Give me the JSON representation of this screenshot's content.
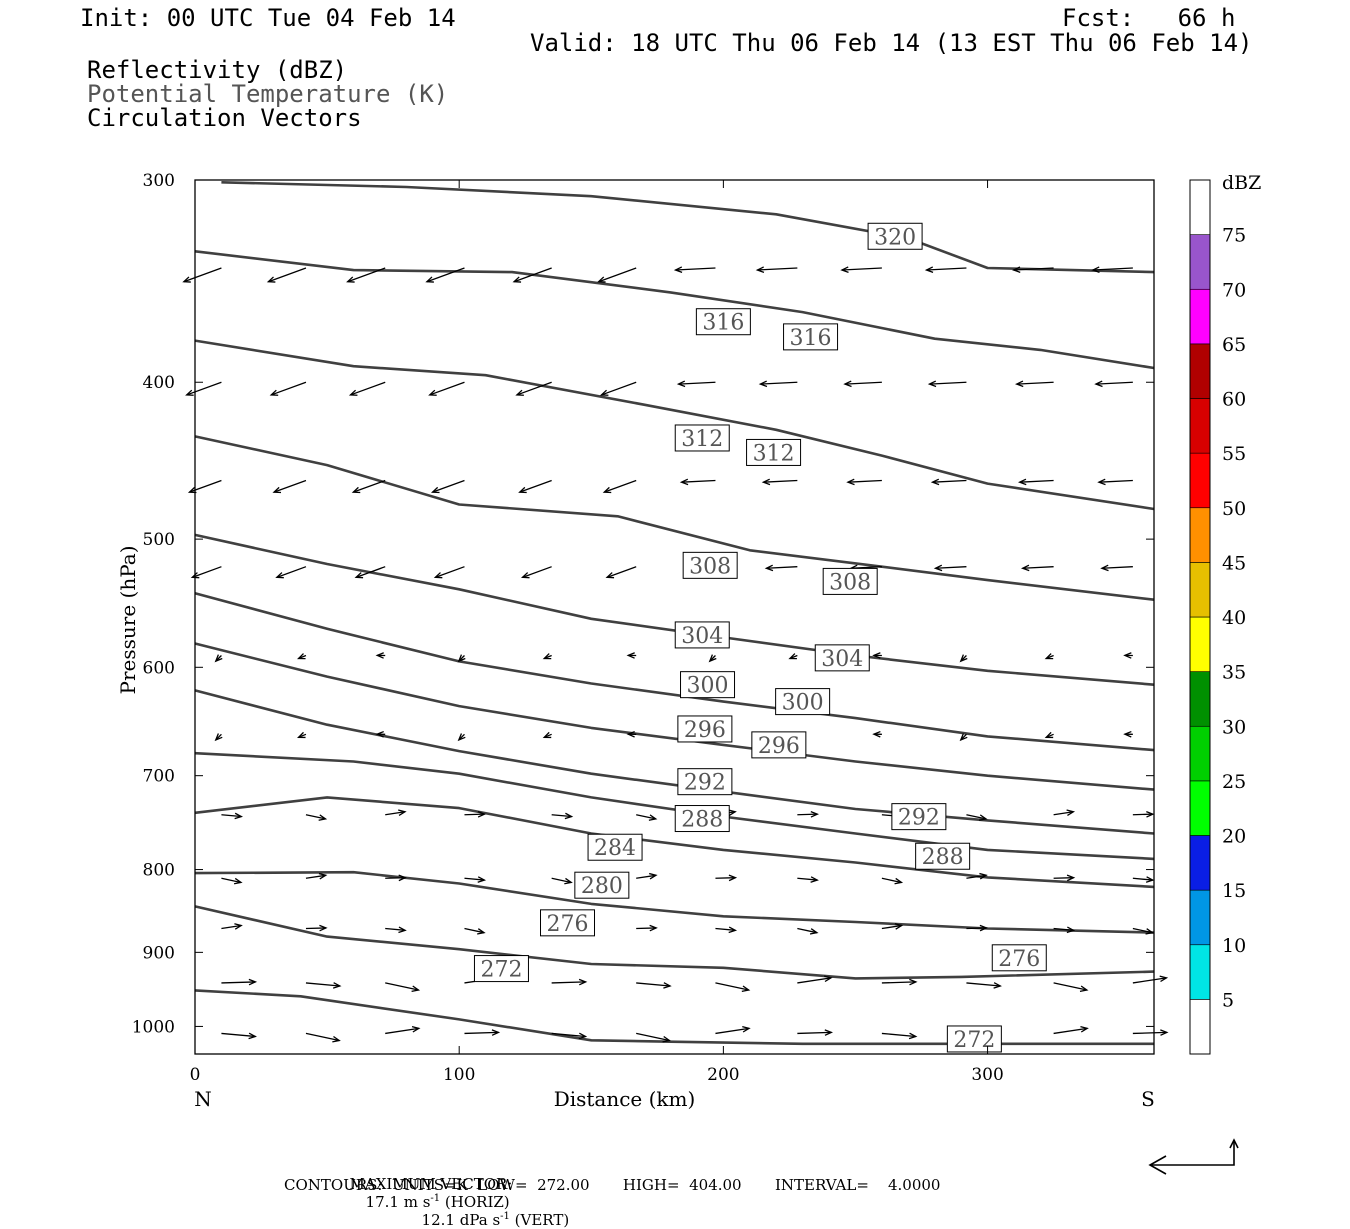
{
  "header": {
    "init": "Init: 00 UTC Tue 04 Feb 14",
    "fcst": "Fcst:   66 h",
    "valid": "Valid: 18 UTC Thu 06 Feb 14 (13 EST Thu 06 Feb 14)",
    "legend_lines": [
      "Reflectivity (dBZ)",
      "Potential Temperature (K)",
      "Circulation Vectors"
    ]
  },
  "chart_data": {
    "type": "cross-section",
    "title": "",
    "xlabel": "Distance (km)",
    "ylabel": "Pressure (hPa)",
    "xlim": [
      0,
      363
    ],
    "ylim": [
      1040,
      300
    ],
    "y_scale": "log-pressure",
    "x_ticks": [
      0,
      100,
      200,
      300
    ],
    "y_ticks": [
      300,
      400,
      500,
      600,
      700,
      800,
      900,
      1000
    ],
    "x_end_labels": {
      "left": "N",
      "right": "S"
    },
    "colorbar": {
      "unit": "dBZ",
      "levels": [
        5,
        10,
        15,
        20,
        25,
        30,
        35,
        40,
        45,
        50,
        55,
        60,
        65,
        70,
        75
      ],
      "colors": [
        "#ffffff",
        "#00e5e5",
        "#0096e5",
        "#0a1ee5",
        "#00ff00",
        "#00d000",
        "#009000",
        "#ffff00",
        "#e6c000",
        "#ff9000",
        "#ff0000",
        "#d80000",
        "#b00000",
        "#ff00ff",
        "#9955cc"
      ]
    },
    "theta_contours": [
      {
        "level": 320,
        "points": [
          [
            10,
            301
          ],
          [
            80,
            303
          ],
          [
            150,
            307
          ],
          [
            220,
            315
          ],
          [
            270,
            326
          ],
          [
            300,
            340
          ],
          [
            363,
            342
          ]
        ],
        "labels": [
          [
            265,
            325
          ]
        ]
      },
      {
        "level": 316,
        "points": [
          [
            0,
            332
          ],
          [
            60,
            341
          ],
          [
            120,
            342
          ],
          [
            180,
            352
          ],
          [
            230,
            362
          ],
          [
            280,
            376
          ],
          [
            320,
            382
          ],
          [
            363,
            392
          ]
        ],
        "labels": [
          [
            200,
            367
          ],
          [
            233,
            375
          ]
        ]
      },
      {
        "level": 312,
        "points": [
          [
            0,
            377
          ],
          [
            60,
            391
          ],
          [
            110,
            396
          ],
          [
            170,
            413
          ],
          [
            220,
            428
          ],
          [
            260,
            444
          ],
          [
            300,
            462
          ],
          [
            363,
            479
          ]
        ],
        "labels": [
          [
            192,
            433
          ],
          [
            219,
            442
          ]
        ]
      },
      {
        "level": 308,
        "points": [
          [
            0,
            432
          ],
          [
            50,
            450
          ],
          [
            100,
            476
          ],
          [
            160,
            484
          ],
          [
            210,
            508
          ],
          [
            260,
            520
          ],
          [
            300,
            530
          ],
          [
            363,
            545
          ]
        ],
        "labels": [
          [
            195,
            519
          ],
          [
            248,
            531
          ]
        ]
      },
      {
        "level": 304,
        "points": [
          [
            0,
            497
          ],
          [
            50,
            518
          ],
          [
            100,
            537
          ],
          [
            150,
            560
          ],
          [
            200,
            575
          ],
          [
            250,
            590
          ],
          [
            300,
            603
          ],
          [
            363,
            615
          ]
        ],
        "labels": [
          [
            192,
            573
          ],
          [
            245,
            592
          ]
        ]
      },
      {
        "level": 300,
        "points": [
          [
            0,
            540
          ],
          [
            50,
            568
          ],
          [
            100,
            595
          ],
          [
            150,
            614
          ],
          [
            200,
            630
          ],
          [
            250,
            645
          ],
          [
            300,
            662
          ],
          [
            363,
            675
          ]
        ],
        "labels": [
          [
            194,
            615
          ],
          [
            230,
            630
          ]
        ]
      },
      {
        "level": 296,
        "points": [
          [
            0,
            580
          ],
          [
            50,
            608
          ],
          [
            100,
            634
          ],
          [
            150,
            654
          ],
          [
            200,
            670
          ],
          [
            250,
            686
          ],
          [
            300,
            700
          ],
          [
            363,
            714
          ]
        ],
        "labels": [
          [
            193,
            655
          ],
          [
            221,
            670
          ]
        ]
      },
      {
        "level": 292,
        "points": [
          [
            0,
            620
          ],
          [
            50,
            651
          ],
          [
            100,
            676
          ],
          [
            150,
            698
          ],
          [
            200,
            716
          ],
          [
            250,
            734
          ],
          [
            300,
            746
          ],
          [
            363,
            760
          ]
        ],
        "labels": [
          [
            193,
            706
          ],
          [
            274,
            742
          ]
        ]
      },
      {
        "level": 288,
        "points": [
          [
            0,
            678
          ],
          [
            60,
            686
          ],
          [
            100,
            698
          ],
          [
            150,
            722
          ],
          [
            200,
            742
          ],
          [
            250,
            760
          ],
          [
            300,
            778
          ],
          [
            363,
            788
          ]
        ],
        "labels": [
          [
            192,
            744
          ],
          [
            283,
            785
          ]
        ]
      },
      {
        "level": 284,
        "points": [
          [
            0,
            738
          ],
          [
            50,
            722
          ],
          [
            100,
            733
          ],
          [
            150,
            760
          ],
          [
            200,
            778
          ],
          [
            250,
            792
          ],
          [
            300,
            809
          ],
          [
            363,
            820
          ]
        ],
        "labels": [
          [
            159,
            775
          ]
        ]
      },
      {
        "level": 280,
        "points": [
          [
            0,
            804
          ],
          [
            60,
            803
          ],
          [
            100,
            816
          ],
          [
            150,
            840
          ],
          [
            200,
            855
          ],
          [
            250,
            862
          ],
          [
            300,
            870
          ],
          [
            363,
            875
          ]
        ],
        "labels": [
          [
            154,
            818
          ]
        ]
      },
      {
        "level": 276,
        "points": [
          [
            0,
            843
          ],
          [
            50,
            880
          ],
          [
            100,
            896
          ],
          [
            150,
            915
          ],
          [
            200,
            920
          ],
          [
            250,
            934
          ],
          [
            290,
            932
          ],
          [
            363,
            925
          ]
        ],
        "labels": [
          [
            141,
            863
          ],
          [
            312,
            907
          ]
        ]
      },
      {
        "level": 272,
        "points": [
          [
            0,
            950
          ],
          [
            40,
            958
          ],
          [
            100,
            990
          ],
          [
            150,
            1020
          ],
          [
            180,
            1022
          ],
          [
            230,
            1025
          ],
          [
            363,
            1025
          ]
        ],
        "labels": [
          [
            116,
            921
          ],
          [
            295,
            1018
          ]
        ]
      }
    ],
    "max_vector": {
      "horiz": "17.1 m s",
      "horiz_exp": "-1",
      "horiz_tail": " (HORIZ)",
      "vert": "12.1 dPa s",
      "vert_exp": "-1",
      "vert_tail": " (VERT)"
    },
    "contour_info": {
      "units": "K",
      "low": "272.00",
      "high": "404.00",
      "interval": "4.0000"
    }
  },
  "footer": {
    "line1_prefix": "MAXIMUM VECTOR:",
    "line2": "CONTOURS:  UNITS=K  LOW=  272.00       HIGH=  404.00       INTERVAL=    4.0000"
  }
}
